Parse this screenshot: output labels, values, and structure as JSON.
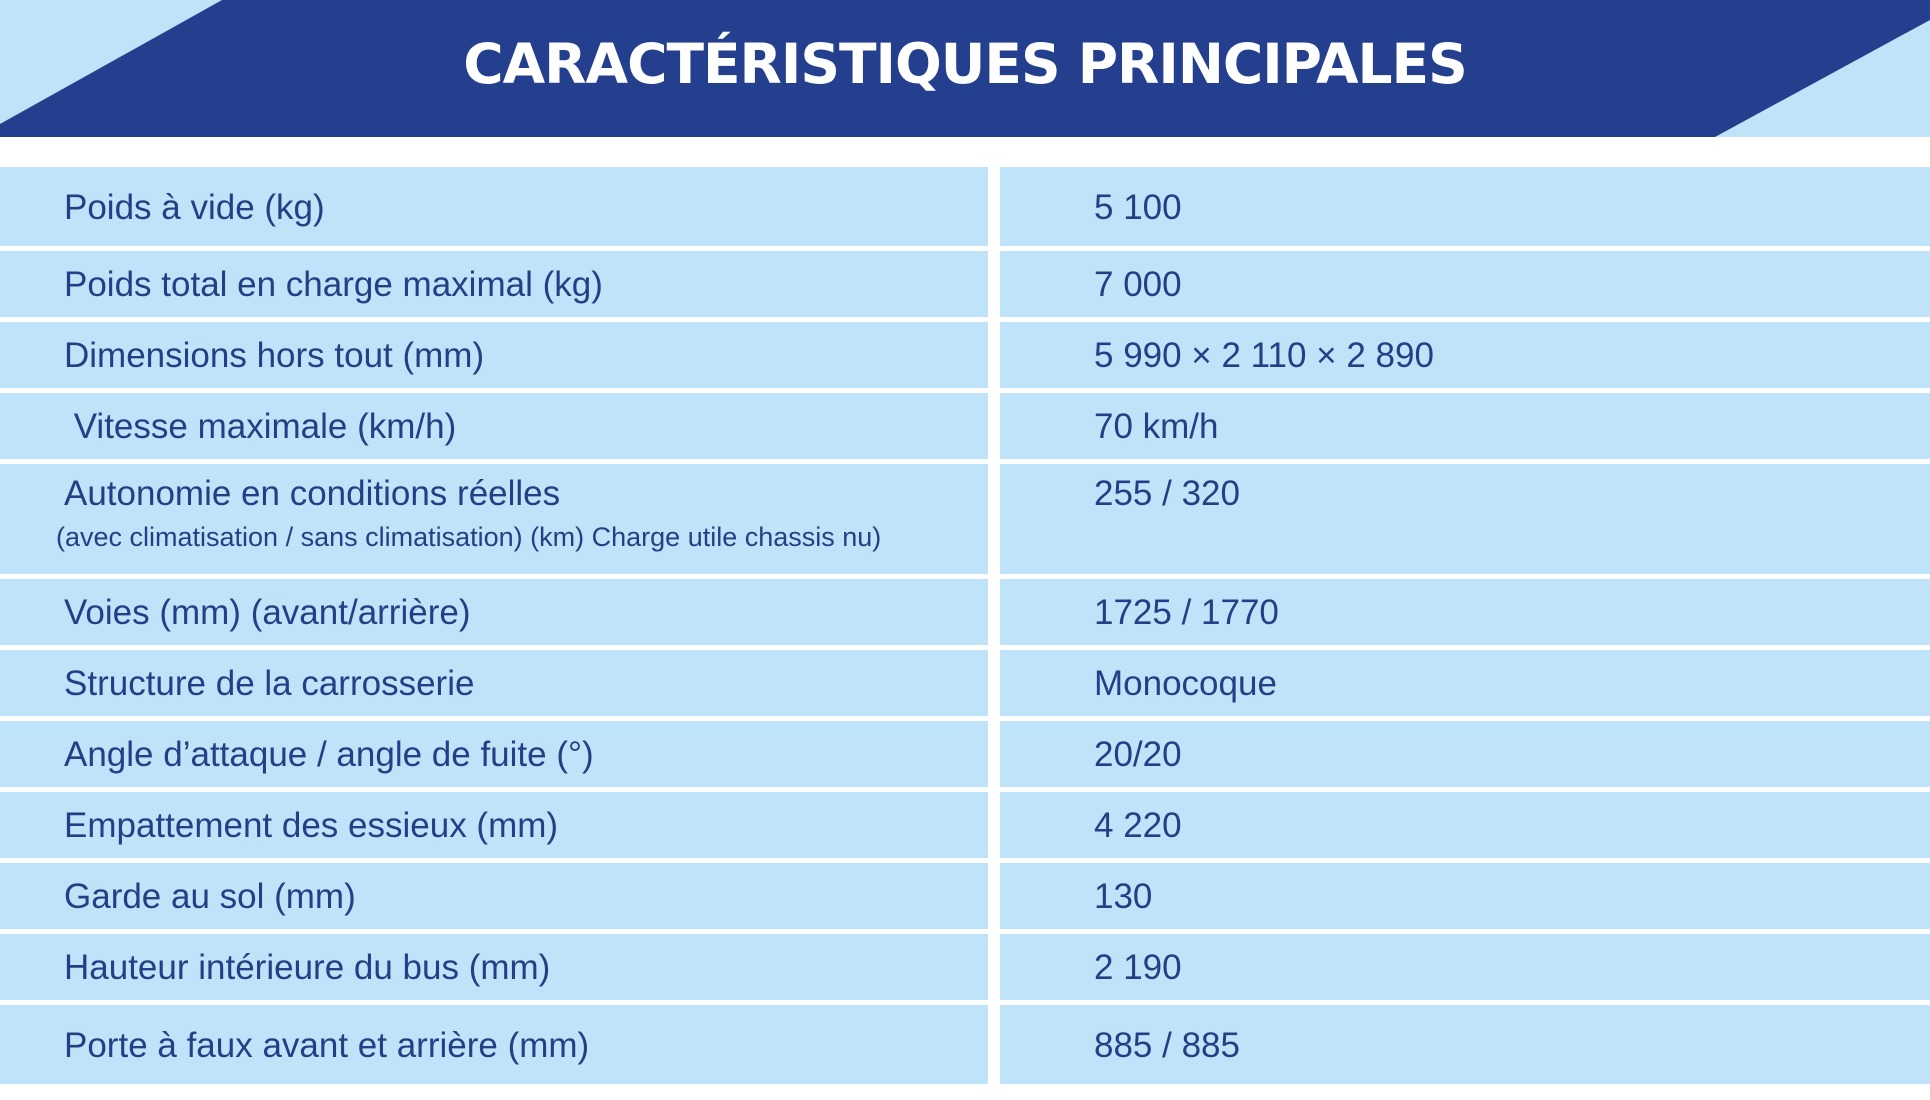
{
  "header": {
    "title": "CARACTÉRISTIQUES PRINCIPALES",
    "colors": {
      "band": "#233f8e",
      "light_blue": "#bfe3f8",
      "text": "#ffffff"
    }
  },
  "table": {
    "colors": {
      "cell_background": "#bfe3f8",
      "text": "#253f86"
    },
    "rows": [
      {
        "label": "Poids à vide (kg)",
        "sublabel": "",
        "value": "5 100"
      },
      {
        "label": "Poids total en charge maximal (kg)",
        "sublabel": "",
        "value": "7 000"
      },
      {
        "label": "Dimensions hors tout (mm)",
        "sublabel": "",
        "value": "5 990 × 2 110 × 2 890"
      },
      {
        "label": " Vitesse maximale (km/h)",
        "sublabel": "",
        "value": "70 km/h"
      },
      {
        "label": "Autonomie en conditions réelles",
        "sublabel": "(avec climatisation / sans climatisation) (km) Charge utile chassis nu)",
        "value": "255 / 320"
      },
      {
        "label": "Voies (mm) (avant/arrière)",
        "sublabel": "",
        "value": "1725 / 1770"
      },
      {
        "label": "Structure de la carrosserie",
        "sublabel": "",
        "value": "Monocoque"
      },
      {
        "label": "Angle d’attaque / angle de fuite (°)",
        "sublabel": "",
        "value": "20/20"
      },
      {
        "label": "Empattement des essieux (mm)",
        "sublabel": "",
        "value": "4 220"
      },
      {
        "label": "Garde au sol (mm)",
        "sublabel": "",
        "value": "130"
      },
      {
        "label": "Hauteur intérieure du bus (mm)",
        "sublabel": "",
        "value": "2 190"
      },
      {
        "label": "Porte à faux avant et arrière (mm)",
        "sublabel": "",
        "value": "885 / 885"
      }
    ]
  }
}
